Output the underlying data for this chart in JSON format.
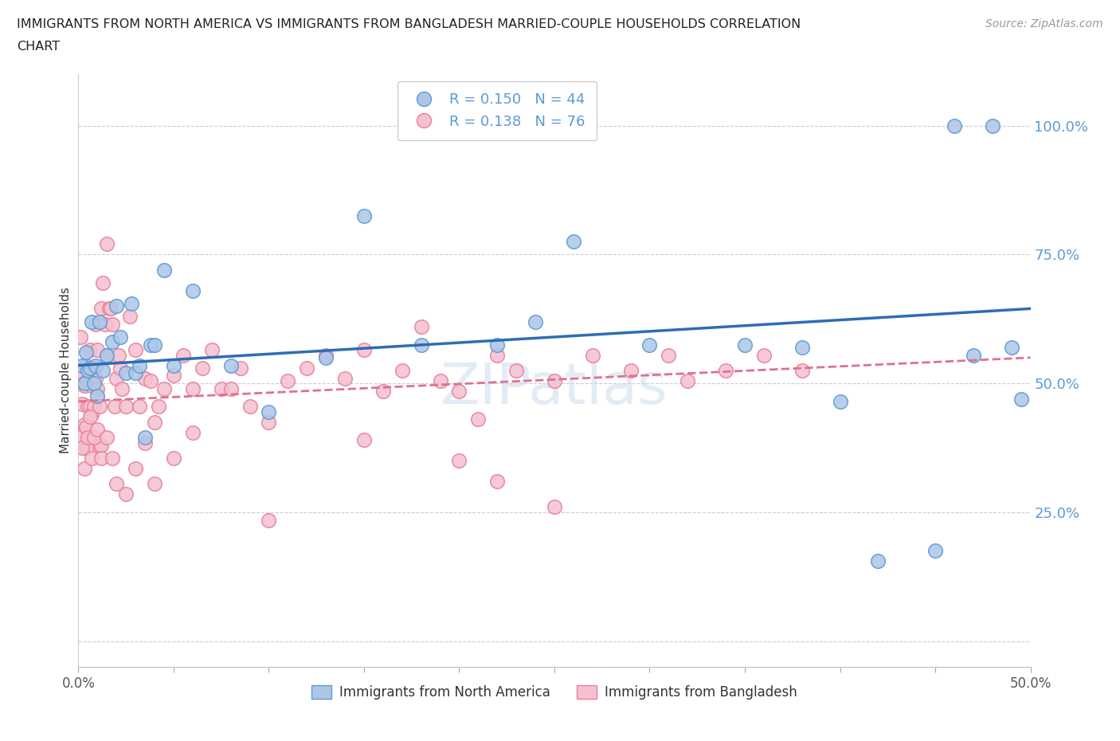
{
  "title_line1": "IMMIGRANTS FROM NORTH AMERICA VS IMMIGRANTS FROM BANGLADESH MARRIED-COUPLE HOUSEHOLDS CORRELATION",
  "title_line2": "CHART",
  "source": "Source: ZipAtlas.com",
  "ylabel": "Married-couple Households",
  "xlim": [
    0,
    0.5
  ],
  "ylim": [
    -0.05,
    1.1
  ],
  "watermark": "ZIPatlas",
  "blue_fill": "#adc6e8",
  "blue_edge": "#5b9bd5",
  "pink_fill": "#f5c0d0",
  "pink_edge": "#e8819a",
  "blue_line_color": "#2e6db4",
  "pink_line_color": "#e07090",
  "legend_text1": "R = 0.150   N = 44",
  "legend_text2": "R = 0.138   N = 76",
  "legend_label1": "Immigrants from North America",
  "legend_label2": "Immigrants from Bangladesh",
  "ytick_vals": [
    0.0,
    0.25,
    0.5,
    0.75,
    1.0
  ],
  "ytick_labels": [
    "",
    "25.0%",
    "50.0%",
    "75.0%",
    "100.0%"
  ],
  "blue_x": [
    0.002,
    0.003,
    0.004,
    0.005,
    0.006,
    0.007,
    0.008,
    0.009,
    0.01,
    0.011,
    0.013,
    0.015,
    0.018,
    0.02,
    0.022,
    0.025,
    0.028,
    0.03,
    0.032,
    0.035,
    0.038,
    0.04,
    0.045,
    0.05,
    0.06,
    0.08,
    0.1,
    0.13,
    0.15,
    0.18,
    0.22,
    0.24,
    0.26,
    0.3,
    0.35,
    0.38,
    0.4,
    0.42,
    0.45,
    0.46,
    0.47,
    0.48,
    0.49,
    0.495
  ],
  "blue_y": [
    0.535,
    0.5,
    0.56,
    0.525,
    0.53,
    0.62,
    0.5,
    0.535,
    0.475,
    0.62,
    0.525,
    0.555,
    0.58,
    0.65,
    0.59,
    0.52,
    0.655,
    0.52,
    0.535,
    0.395,
    0.575,
    0.575,
    0.72,
    0.535,
    0.68,
    0.535,
    0.445,
    0.55,
    0.825,
    0.575,
    0.575,
    0.62,
    0.775,
    0.575,
    0.575,
    0.57,
    0.465,
    0.155,
    0.175,
    1.0,
    0.555,
    1.0,
    0.57,
    0.47
  ],
  "pink_x": [
    0.001,
    0.001,
    0.002,
    0.002,
    0.003,
    0.003,
    0.004,
    0.004,
    0.005,
    0.005,
    0.006,
    0.006,
    0.007,
    0.007,
    0.008,
    0.008,
    0.009,
    0.009,
    0.01,
    0.01,
    0.011,
    0.011,
    0.012,
    0.012,
    0.013,
    0.014,
    0.015,
    0.015,
    0.016,
    0.017,
    0.018,
    0.019,
    0.02,
    0.021,
    0.022,
    0.023,
    0.025,
    0.027,
    0.03,
    0.032,
    0.035,
    0.038,
    0.04,
    0.042,
    0.045,
    0.05,
    0.055,
    0.06,
    0.065,
    0.07,
    0.075,
    0.08,
    0.085,
    0.09,
    0.1,
    0.11,
    0.12,
    0.13,
    0.14,
    0.15,
    0.16,
    0.17,
    0.18,
    0.19,
    0.2,
    0.21,
    0.22,
    0.23,
    0.25,
    0.27,
    0.29,
    0.31,
    0.32,
    0.34,
    0.36,
    0.38
  ],
  "pink_y": [
    0.5,
    0.59,
    0.52,
    0.46,
    0.495,
    0.42,
    0.535,
    0.375,
    0.505,
    0.455,
    0.455,
    0.565,
    0.44,
    0.495,
    0.53,
    0.455,
    0.615,
    0.51,
    0.49,
    0.565,
    0.455,
    0.38,
    0.645,
    0.38,
    0.695,
    0.615,
    0.77,
    0.555,
    0.645,
    0.645,
    0.615,
    0.455,
    0.51,
    0.555,
    0.53,
    0.49,
    0.455,
    0.63,
    0.565,
    0.455,
    0.51,
    0.505,
    0.425,
    0.455,
    0.49,
    0.515,
    0.555,
    0.49,
    0.53,
    0.565,
    0.49,
    0.49,
    0.53,
    0.455,
    0.425,
    0.505,
    0.53,
    0.555,
    0.51,
    0.565,
    0.485,
    0.525,
    0.61,
    0.505,
    0.485,
    0.43,
    0.555,
    0.525,
    0.505,
    0.555,
    0.525,
    0.555,
    0.505,
    0.525,
    0.555,
    0.525
  ],
  "pink_y_low": [
    0.395,
    0.375,
    0.335,
    0.415,
    0.395,
    0.435,
    0.355,
    0.395,
    0.41,
    0.355,
    0.395,
    0.355,
    0.305,
    0.285,
    0.335,
    0.385,
    0.305,
    0.355,
    0.405,
    0.235,
    0.39,
    0.35,
    0.31,
    0.26
  ]
}
